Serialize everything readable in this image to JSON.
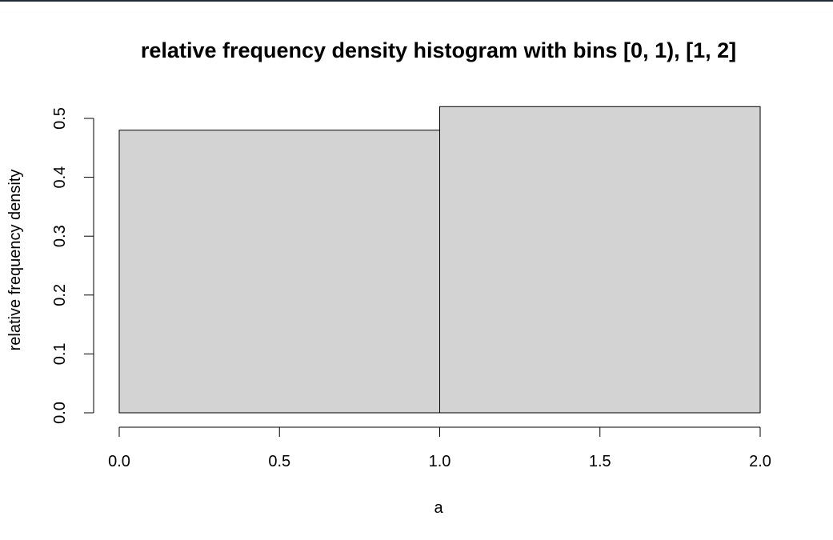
{
  "chart_data": {
    "type": "bar",
    "title": "relative frequency density histogram with bins [0, 1), [1, 2]",
    "xlabel": "a",
    "ylabel": "relative frequency density",
    "bins": [
      {
        "start": 0,
        "end": 1,
        "value": 0.48
      },
      {
        "start": 1,
        "end": 2,
        "value": 0.52
      }
    ],
    "xlim": [
      0,
      2
    ],
    "ylim": [
      0,
      0.5
    ],
    "x_ticks": [
      "0.0",
      "0.5",
      "1.0",
      "1.5",
      "2.0"
    ],
    "y_ticks": [
      "0.0",
      "0.1",
      "0.2",
      "0.3",
      "0.4",
      "0.5"
    ],
    "bar_fill": "#d3d3d3",
    "bar_stroke": "#000000",
    "grid": false,
    "legend": "none"
  }
}
